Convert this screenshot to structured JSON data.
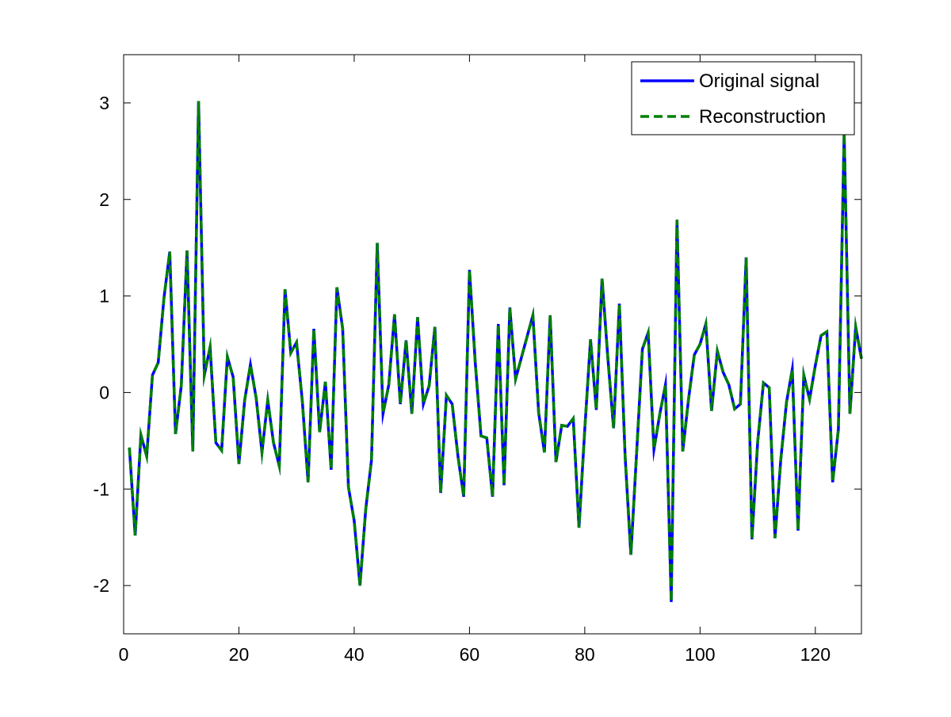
{
  "chart_data": {
    "type": "line",
    "title": "",
    "xlabel": "",
    "ylabel": "",
    "xlim": [
      0,
      128
    ],
    "ylim": [
      -2.5,
      3.5
    ],
    "xticks": [
      0,
      20,
      40,
      60,
      80,
      100,
      120
    ],
    "yticks": [
      -2,
      -1,
      0,
      1,
      2,
      3
    ],
    "xtick_labels": [
      "0",
      "20",
      "40",
      "60",
      "80",
      "100",
      "120"
    ],
    "ytick_labels": [
      "-2",
      "-1",
      "0",
      "1",
      "2",
      "3"
    ],
    "grid": false,
    "legend_position": "top-right",
    "x": [
      1,
      2,
      3,
      4,
      5,
      6,
      7,
      8,
      9,
      10,
      11,
      12,
      13,
      14,
      15,
      16,
      17,
      18,
      19,
      20,
      21,
      22,
      23,
      24,
      25,
      26,
      27,
      28,
      29,
      30,
      31,
      32,
      33,
      34,
      35,
      36,
      37,
      38,
      39,
      40,
      41,
      42,
      43,
      44,
      45,
      46,
      47,
      48,
      49,
      50,
      51,
      52,
      53,
      54,
      55,
      56,
      57,
      58,
      59,
      60,
      61,
      62,
      63,
      64,
      65,
      66,
      67,
      68,
      69,
      70,
      71,
      72,
      73,
      74,
      75,
      76,
      77,
      78,
      79,
      80,
      81,
      82,
      83,
      84,
      85,
      86,
      87,
      88,
      89,
      90,
      91,
      92,
      93,
      94,
      95,
      96,
      97,
      98,
      99,
      100,
      101,
      102,
      103,
      104,
      105,
      106,
      107,
      108,
      109,
      110,
      111,
      112,
      113,
      114,
      115,
      116,
      117,
      118,
      119,
      120,
      121,
      122,
      123,
      124,
      125,
      126,
      127,
      128
    ],
    "series": [
      {
        "name": "Original signal",
        "color": "#0000ff",
        "style": "solid",
        "values": [
          -0.57,
          -1.48,
          -0.44,
          -0.66,
          0.18,
          0.31,
          0.98,
          1.46,
          -0.43,
          0.07,
          1.47,
          -0.61,
          3.02,
          0.18,
          0.47,
          -0.52,
          -0.6,
          0.37,
          0.16,
          -0.74,
          -0.08,
          0.29,
          -0.06,
          -0.62,
          -0.08,
          -0.52,
          -0.76,
          1.07,
          0.41,
          0.52,
          -0.09,
          -0.93,
          0.66,
          -0.41,
          0.11,
          -0.8,
          1.09,
          0.66,
          -0.98,
          -1.33,
          -2.0,
          -1.21,
          -0.7,
          1.55,
          -0.22,
          0.08,
          0.81,
          -0.12,
          0.54,
          -0.22,
          0.78,
          -0.12,
          0.07,
          0.68,
          -1.04,
          -0.03,
          -0.12,
          -0.66,
          -1.08,
          1.27,
          0.31,
          -0.45,
          -0.47,
          -1.08,
          0.71,
          -0.96,
          0.88,
          0.14,
          0.36,
          0.58,
          0.8,
          -0.21,
          -0.62,
          0.8,
          -0.72,
          -0.34,
          -0.35,
          -0.27,
          -1.4,
          -0.38,
          0.55,
          -0.18,
          1.18,
          0.36,
          -0.37,
          0.92,
          -0.66,
          -1.68,
          -0.62,
          0.45,
          0.62,
          -0.59,
          -0.23,
          0.08,
          -2.17,
          1.79,
          -0.61,
          -0.07,
          0.39,
          0.5,
          0.71,
          -0.19,
          0.43,
          0.21,
          0.08,
          -0.17,
          -0.12,
          1.4,
          -1.52,
          -0.51,
          0.1,
          0.05,
          -1.51,
          -0.7,
          -0.1,
          0.24,
          -1.43,
          0.18,
          -0.07,
          0.28,
          0.59,
          0.63,
          -0.93,
          -0.38,
          2.69,
          -0.22,
          0.68,
          0.35
        ]
      },
      {
        "name": "Reconstruction",
        "color": "#008000",
        "style": "dashed",
        "values": [
          -0.57,
          -1.48,
          -0.44,
          -0.66,
          0.18,
          0.31,
          0.98,
          1.46,
          -0.43,
          0.07,
          1.47,
          -0.61,
          3.02,
          0.18,
          0.47,
          -0.52,
          -0.6,
          0.37,
          0.16,
          -0.74,
          -0.08,
          0.29,
          -0.06,
          -0.62,
          -0.08,
          -0.52,
          -0.76,
          1.07,
          0.41,
          0.52,
          -0.09,
          -0.93,
          0.66,
          -0.41,
          0.11,
          -0.8,
          1.09,
          0.66,
          -0.98,
          -1.33,
          -2.0,
          -1.21,
          -0.7,
          1.55,
          -0.22,
          0.08,
          0.81,
          -0.12,
          0.54,
          -0.22,
          0.78,
          -0.12,
          0.07,
          0.68,
          -1.04,
          -0.03,
          -0.12,
          -0.66,
          -1.08,
          1.27,
          0.31,
          -0.45,
          -0.47,
          -1.08,
          0.71,
          -0.96,
          0.88,
          0.14,
          0.36,
          0.58,
          0.8,
          -0.21,
          -0.62,
          0.8,
          -0.72,
          -0.34,
          -0.35,
          -0.27,
          -1.4,
          -0.38,
          0.55,
          -0.18,
          1.18,
          0.36,
          -0.37,
          0.92,
          -0.66,
          -1.68,
          -0.62,
          0.45,
          0.62,
          -0.59,
          -0.23,
          0.08,
          -2.17,
          1.79,
          -0.61,
          -0.07,
          0.39,
          0.5,
          0.71,
          -0.19,
          0.43,
          0.21,
          0.08,
          -0.17,
          -0.12,
          1.4,
          -1.52,
          -0.51,
          0.1,
          0.05,
          -1.51,
          -0.7,
          -0.1,
          0.24,
          -1.43,
          0.18,
          -0.07,
          0.28,
          0.59,
          0.63,
          -0.93,
          -0.38,
          2.69,
          -0.22,
          0.68,
          0.35
        ]
      }
    ]
  }
}
